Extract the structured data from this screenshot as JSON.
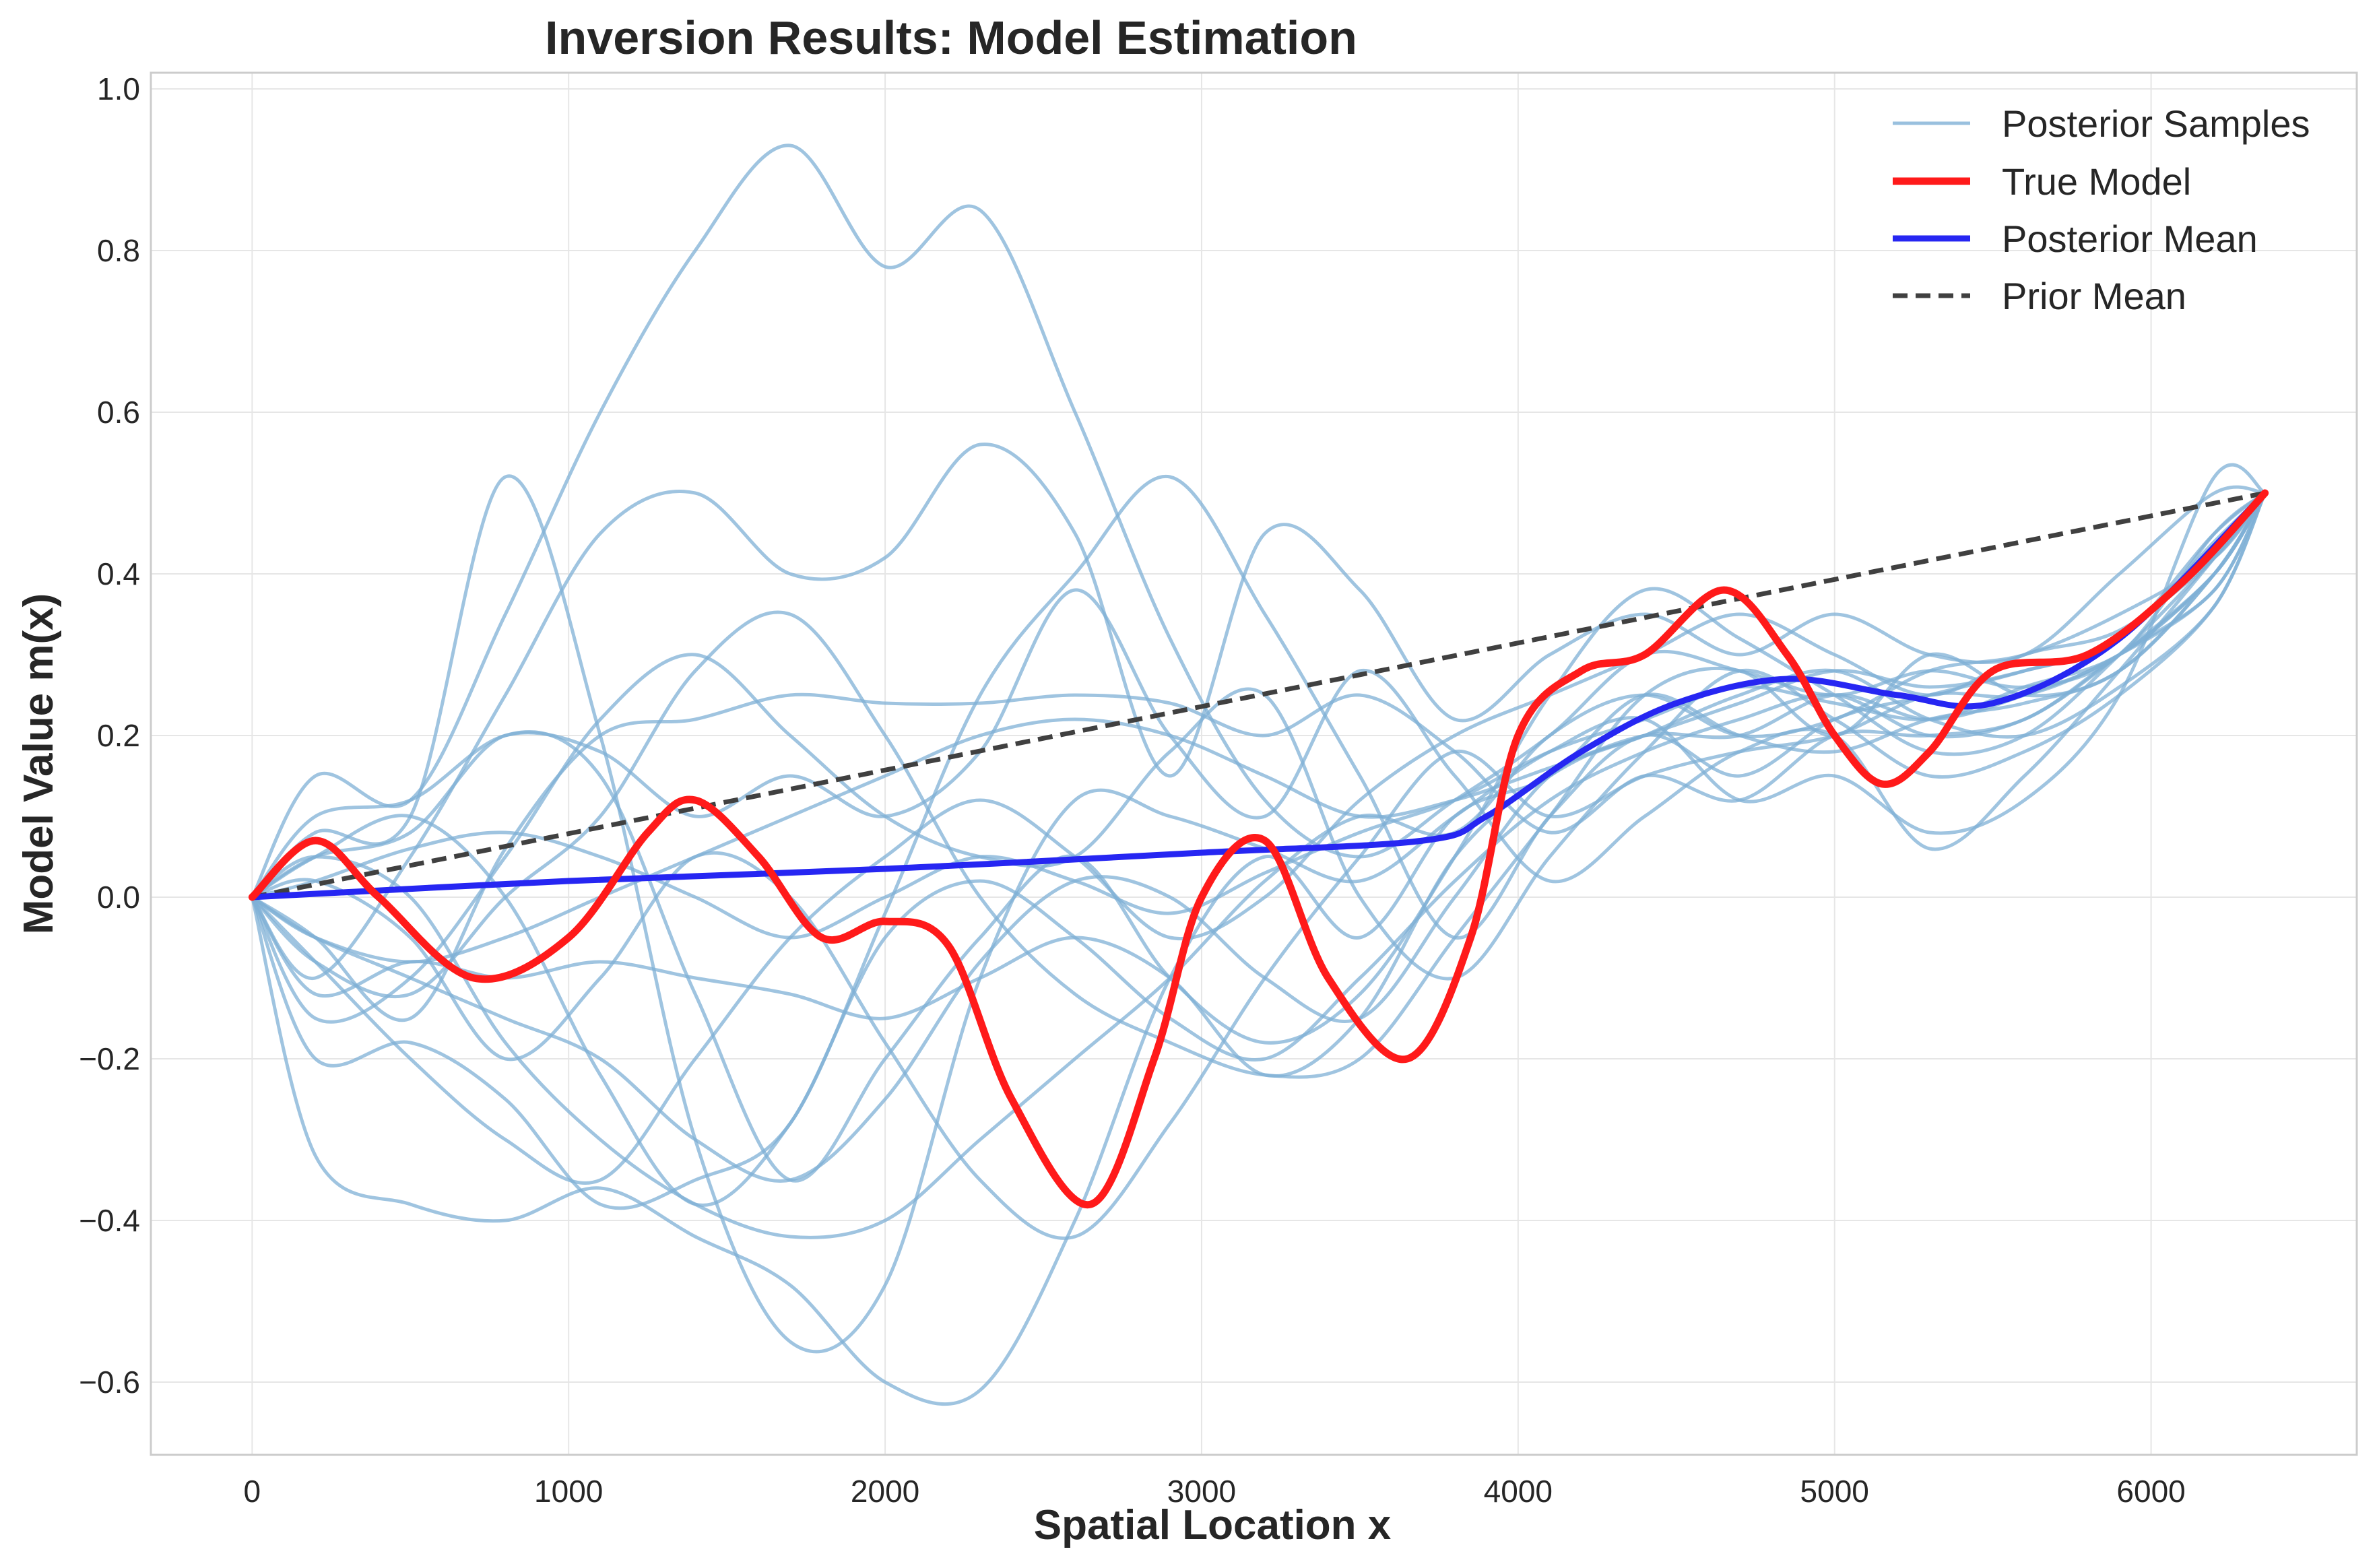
{
  "colors": {
    "samples": "#7fb0d6",
    "true_model": "#ff1a1a",
    "posterior_mean": "#2626f2",
    "prior_mean": "#404040",
    "grid": "#e6e6e6",
    "frame": "#cccccc"
  },
  "chart_data": {
    "type": "line",
    "title": "Inversion Results: Model Estimation",
    "xlabel": "Spatial Location x",
    "ylabel": "Model Value m(x)",
    "xlim": [
      -320,
      6650
    ],
    "ylim": [
      -0.69,
      1.02
    ],
    "xticks": [
      0,
      1000,
      2000,
      3000,
      4000,
      5000,
      6000
    ],
    "xtick_labels": [
      "0",
      "1000",
      "2000",
      "3000",
      "4000",
      "5000",
      "6000"
    ],
    "yticks": [
      -0.6,
      -0.4,
      -0.2,
      0.0,
      0.2,
      0.4,
      0.6,
      0.8,
      1.0
    ],
    "ytick_labels": [
      "−0.6",
      "−0.4",
      "−0.2",
      "0.0",
      "0.2",
      "0.4",
      "0.6",
      "0.8",
      "1.0"
    ],
    "grid": true,
    "legend_position": "top-right",
    "legend": [
      "Posterior Samples",
      "True Model",
      "Posterior Mean",
      "Prior Mean"
    ],
    "true_model": {
      "name": "True Model",
      "x": [
        0,
        200,
        400,
        700,
        1000,
        1250,
        1400,
        1600,
        1800,
        2000,
        2200,
        2400,
        2650,
        2850,
        3000,
        3200,
        3400,
        3650,
        3850,
        4000,
        4200,
        4400,
        4650,
        4850,
        5000,
        5150,
        5300,
        5500,
        5800,
        6100,
        6360
      ],
      "y": [
        0.0,
        0.07,
        0.0,
        -0.1,
        -0.05,
        0.08,
        0.12,
        0.05,
        -0.05,
        -0.03,
        -0.06,
        -0.25,
        -0.38,
        -0.2,
        0.0,
        0.07,
        -0.1,
        -0.2,
        -0.05,
        0.2,
        0.28,
        0.3,
        0.38,
        0.3,
        0.2,
        0.14,
        0.18,
        0.28,
        0.3,
        0.39,
        0.5
      ]
    },
    "posterior_mean": {
      "name": "Posterior Mean",
      "x": [
        0,
        1000,
        2000,
        3000,
        3700,
        3900,
        4200,
        4500,
        4850,
        5200,
        5500,
        5900,
        6360
      ],
      "y": [
        0.0,
        0.02,
        0.035,
        0.055,
        0.07,
        0.1,
        0.18,
        0.24,
        0.27,
        0.25,
        0.24,
        0.32,
        0.5
      ]
    },
    "prior_mean": {
      "name": "Prior Mean",
      "x": [
        0,
        6360
      ],
      "y": [
        0.0,
        0.5
      ]
    },
    "posterior_samples": {
      "name": "Posterior Samples",
      "x": [
        0,
        200,
        500,
        800,
        1100,
        1400,
        1700,
        2000,
        2300,
        2600,
        2900,
        3200,
        3500,
        3800,
        4100,
        4400,
        4700,
        5000,
        5300,
        5600,
        5900,
        6200,
        6360
      ],
      "curves": [
        [
          0,
          0.15,
          0.12,
          0.35,
          0.6,
          0.8,
          0.93,
          0.78,
          0.85,
          0.6,
          0.32,
          0.12,
          0.05,
          0.12,
          0.2,
          0.3,
          0.28,
          0.25,
          0.28,
          0.26,
          0.3,
          0.45,
          0.5
        ],
        [
          0,
          -0.32,
          -0.38,
          -0.4,
          -0.36,
          -0.42,
          -0.48,
          -0.6,
          -0.61,
          -0.4,
          -0.1,
          0.05,
          -0.05,
          0.1,
          0.15,
          0.25,
          0.2,
          0.18,
          0.22,
          0.24,
          0.28,
          0.4,
          0.5
        ],
        [
          0,
          0.08,
          0.1,
          0.52,
          0.2,
          -0.3,
          -0.55,
          -0.48,
          -0.1,
          0.12,
          0.1,
          0.06,
          0.02,
          0.1,
          0.18,
          0.22,
          0.12,
          0.15,
          0.08,
          0.12,
          0.25,
          0.52,
          0.5
        ],
        [
          0,
          -0.1,
          0.05,
          0.25,
          0.45,
          0.5,
          0.4,
          0.42,
          0.56,
          0.45,
          0.15,
          0.45,
          0.38,
          0.22,
          0.3,
          0.35,
          0.3,
          0.35,
          0.3,
          0.3,
          0.4,
          0.5,
          0.5
        ],
        [
          0,
          0.05,
          0.08,
          0.2,
          0.15,
          -0.12,
          -0.35,
          -0.2,
          -0.05,
          0.05,
          -0.1,
          -0.18,
          -0.12,
          0.05,
          0.25,
          0.38,
          0.32,
          0.25,
          0.18,
          0.2,
          0.3,
          0.42,
          0.5
        ],
        [
          0,
          -0.2,
          -0.18,
          -0.25,
          -0.38,
          -0.35,
          -0.28,
          -0.02,
          0.25,
          0.4,
          0.52,
          0.35,
          0.15,
          -0.05,
          0.1,
          0.2,
          0.15,
          0.22,
          0.25,
          0.28,
          0.32,
          0.45,
          0.5
        ],
        [
          0,
          -0.05,
          -0.15,
          0.06,
          0.2,
          0.22,
          0.25,
          0.24,
          0.24,
          0.25,
          0.24,
          0.2,
          0.25,
          0.18,
          0.08,
          0.15,
          0.12,
          0.2,
          0.2,
          0.22,
          0.3,
          0.4,
          0.5
        ],
        [
          0,
          0.1,
          0.12,
          0.2,
          0.18,
          0.1,
          0.15,
          0.1,
          0.18,
          0.38,
          0.2,
          0.1,
          0.28,
          0.15,
          0.02,
          0.1,
          0.18,
          0.2,
          0.06,
          0.15,
          0.28,
          0.42,
          0.5
        ],
        [
          0,
          -0.05,
          -0.1,
          -0.15,
          -0.2,
          -0.3,
          -0.35,
          -0.25,
          -0.08,
          0.02,
          0.0,
          -0.1,
          -0.15,
          0.0,
          0.15,
          0.2,
          0.25,
          0.28,
          0.22,
          0.2,
          0.26,
          0.36,
          0.5
        ],
        [
          0,
          -0.08,
          -0.12,
          0.0,
          0.1,
          0.28,
          0.35,
          0.2,
          0.0,
          -0.12,
          -0.18,
          -0.22,
          -0.2,
          -0.05,
          0.1,
          0.25,
          0.28,
          0.2,
          0.3,
          0.25,
          0.28,
          0.4,
          0.5
        ],
        [
          0,
          0.05,
          0.1,
          0.0,
          -0.22,
          -0.38,
          -0.28,
          -0.05,
          0.02,
          -0.05,
          -0.15,
          -0.2,
          -0.1,
          0.02,
          0.12,
          0.18,
          0.22,
          0.25,
          0.2,
          0.22,
          0.3,
          0.38,
          0.5
        ],
        [
          0,
          -0.12,
          -0.08,
          -0.1,
          -0.08,
          -0.1,
          -0.12,
          -0.15,
          -0.1,
          -0.05,
          -0.1,
          -0.22,
          -0.15,
          0.05,
          0.15,
          0.2,
          0.2,
          0.25,
          0.22,
          0.25,
          0.3,
          0.4,
          0.5
        ],
        [
          0,
          0.02,
          -0.05,
          -0.2,
          -0.1,
          0.05,
          0.0,
          -0.18,
          -0.35,
          -0.42,
          -0.28,
          -0.1,
          0.05,
          0.18,
          0.1,
          0.15,
          0.18,
          0.2,
          0.25,
          0.25,
          0.3,
          0.38,
          0.5
        ],
        [
          0,
          -0.15,
          -0.1,
          0.05,
          0.22,
          0.3,
          0.2,
          0.1,
          0.05,
          0.05,
          0.18,
          0.25,
          0.0,
          -0.1,
          0.05,
          0.18,
          0.28,
          0.22,
          0.15,
          0.18,
          0.25,
          0.36,
          0.5
        ],
        [
          0,
          0.05,
          0.0,
          -0.18,
          -0.3,
          -0.38,
          -0.42,
          -0.4,
          -0.3,
          -0.2,
          -0.1,
          0.02,
          0.1,
          0.08,
          0.2,
          0.25,
          0.2,
          0.22,
          0.28,
          0.3,
          0.35,
          0.42,
          0.5
        ],
        [
          0,
          -0.08,
          -0.2,
          -0.3,
          -0.35,
          -0.2,
          -0.05,
          0.05,
          0.12,
          0.05,
          -0.05,
          0.0,
          0.12,
          0.2,
          0.25,
          0.3,
          0.35,
          0.3,
          0.25,
          0.3,
          0.33,
          0.42,
          0.5
        ],
        [
          0,
          0.02,
          0.06,
          0.08,
          0.05,
          0.0,
          -0.05,
          0.0,
          0.05,
          0.02,
          -0.02,
          0.03,
          0.08,
          0.12,
          0.18,
          0.22,
          0.26,
          0.24,
          0.22,
          0.26,
          0.3,
          0.4,
          0.5
        ],
        [
          0,
          -0.05,
          -0.08,
          -0.05,
          0.0,
          0.05,
          0.1,
          0.15,
          0.2,
          0.22,
          0.2,
          0.15,
          0.1,
          0.12,
          0.16,
          0.2,
          0.24,
          0.28,
          0.26,
          0.28,
          0.32,
          0.44,
          0.5
        ]
      ]
    }
  }
}
